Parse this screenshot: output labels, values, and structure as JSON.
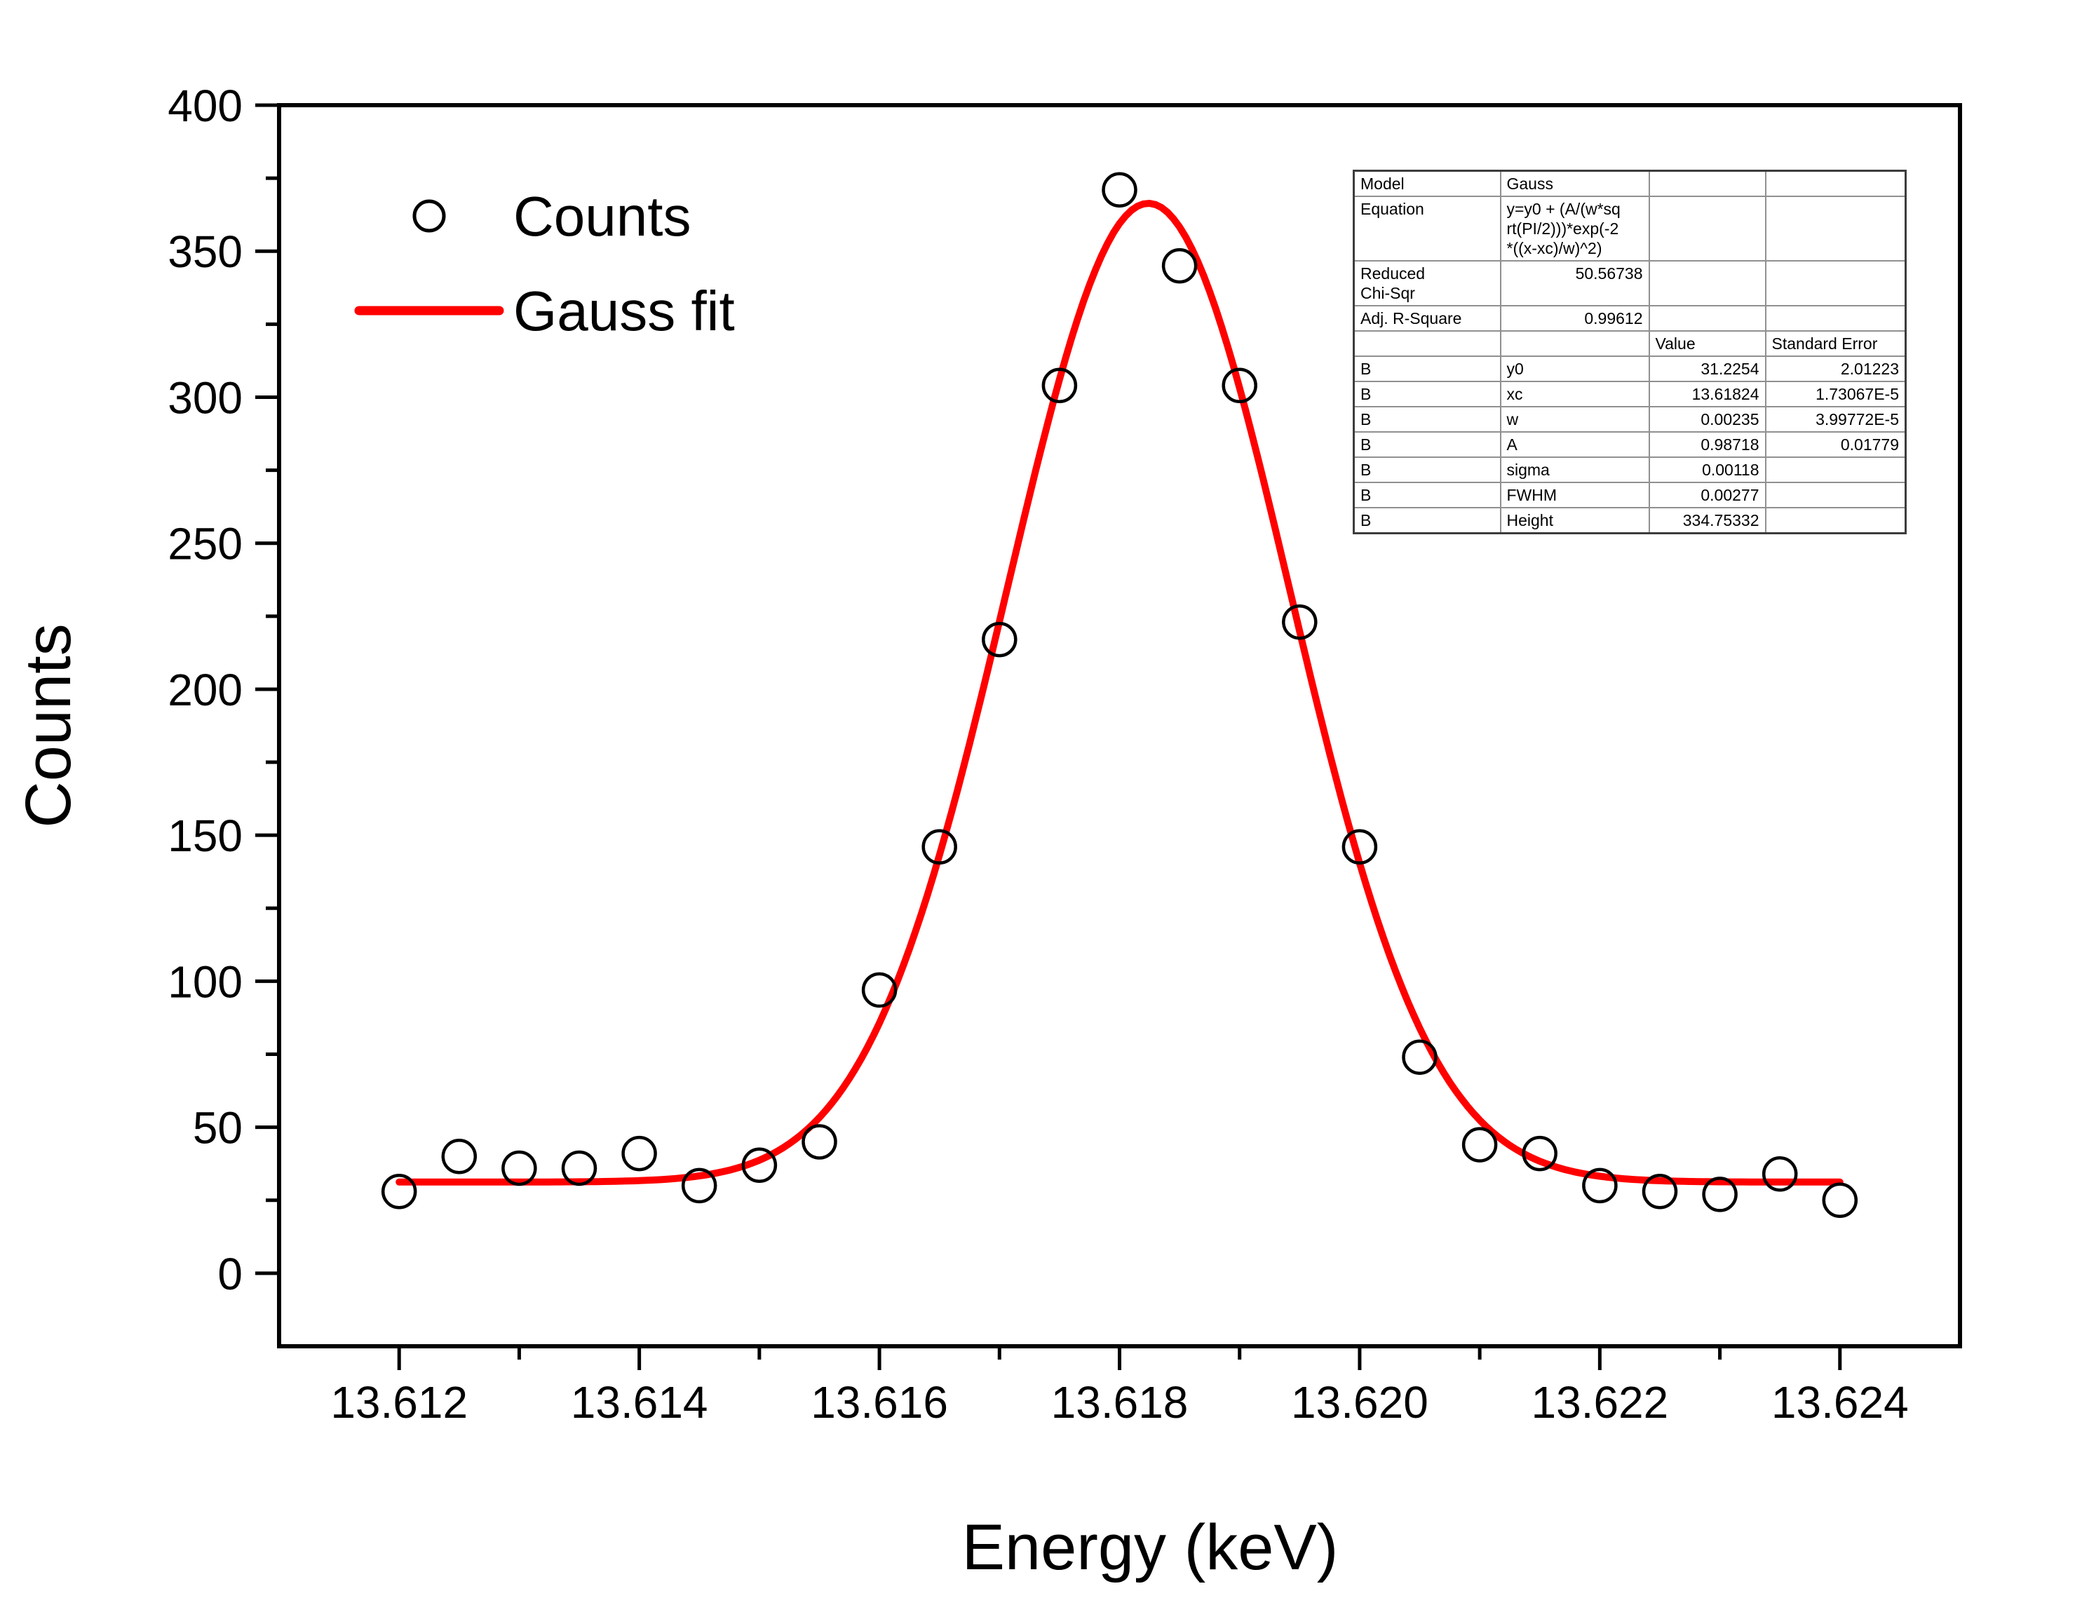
{
  "chart_data": {
    "type": "scatter",
    "title": "",
    "xlabel": "Energy (keV)",
    "ylabel": "Counts",
    "xlim": [
      13.611,
      13.625
    ],
    "ylim": [
      -25,
      400
    ],
    "grid": false,
    "legend_position": "top-left-inside",
    "x_major_ticks": {
      "values": [
        13.612,
        13.614,
        13.616,
        13.618,
        13.62,
        13.622,
        13.624
      ],
      "labels": [
        "13.612",
        "13.614",
        "13.616",
        "13.618",
        "13.620",
        "13.622",
        "13.624"
      ]
    },
    "x_minor_ticks": [
      13.613,
      13.615,
      13.617,
      13.619,
      13.621,
      13.623
    ],
    "y_major_ticks": {
      "values": [
        0,
        50,
        100,
        150,
        200,
        250,
        300,
        350,
        400
      ],
      "labels": [
        "0",
        "50",
        "100",
        "150",
        "200",
        "250",
        "300",
        "350",
        "400"
      ]
    },
    "y_minor_ticks": [
      25,
      75,
      125,
      175,
      225,
      275,
      325,
      375
    ],
    "series": [
      {
        "name": "Counts",
        "kind": "scatter-open-circles",
        "x": [
          13.612,
          13.6125,
          13.613,
          13.6135,
          13.614,
          13.6145,
          13.615,
          13.6155,
          13.616,
          13.6165,
          13.617,
          13.6175,
          13.618,
          13.6185,
          13.619,
          13.6195,
          13.62,
          13.6205,
          13.621,
          13.6215,
          13.622,
          13.6225,
          13.623,
          13.6235,
          13.624
        ],
        "y": [
          28,
          40,
          36,
          36,
          41,
          30,
          37,
          45,
          97,
          146,
          217,
          304,
          371,
          345,
          304,
          223,
          146,
          74,
          44,
          41,
          30,
          28,
          27,
          34,
          25
        ]
      },
      {
        "name": "Gauss fit",
        "kind": "line-gauss",
        "fit_params": {
          "y0": 31.2254,
          "xc": 13.61824,
          "w": 0.00235,
          "A": 0.98718
        },
        "x_start": 13.612,
        "x_end": 13.624
      }
    ]
  },
  "legend": {
    "counts_label": "Counts",
    "fit_label": "Gauss fit"
  },
  "colors": {
    "fit_line": "#ff0000",
    "marker_stroke": "#000000",
    "axis": "#000000",
    "background": "#ffffff"
  },
  "fit_table": {
    "rows": [
      [
        "Model",
        "Gauss",
        "",
        ""
      ],
      [
        "Equation",
        "y=y0 + (A/(w*sq\nrt(PI/2)))*exp(-2\n*((x-xc)/w)^2)",
        "",
        ""
      ],
      [
        "Reduced\nChi-Sqr",
        "50.56738",
        "",
        ""
      ],
      [
        "Adj. R-Square",
        "0.99612",
        "",
        ""
      ],
      [
        "",
        "",
        "Value",
        "Standard Error"
      ],
      [
        "B",
        "y0",
        "31.2254",
        "2.01223"
      ],
      [
        "B",
        "xc",
        "13.61824",
        "1.73067E-5"
      ],
      [
        "B",
        "w",
        "0.00235",
        "3.99772E-5"
      ],
      [
        "B",
        "A",
        "0.98718",
        "0.01779"
      ],
      [
        "B",
        "sigma",
        "0.00118",
        ""
      ],
      [
        "B",
        "FWHM",
        "0.00277",
        ""
      ],
      [
        "B",
        "Height",
        "334.75332",
        ""
      ]
    ]
  }
}
